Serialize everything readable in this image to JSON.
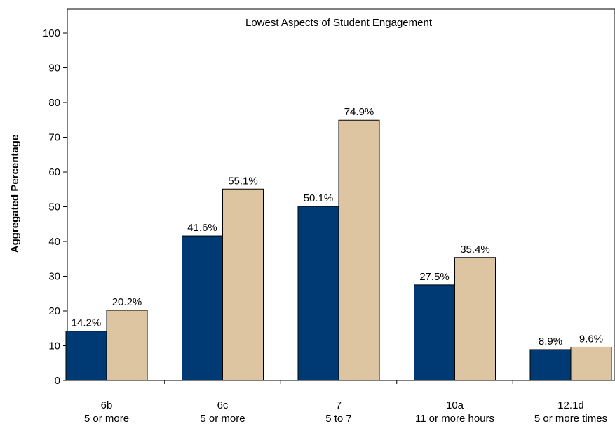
{
  "chart_data": {
    "type": "bar",
    "title": "Lowest Aspects of Student Engagement",
    "ylabel": "Aggregated Percentage",
    "xlabel": "",
    "ylim": [
      0,
      100
    ],
    "yticks": [
      0,
      10,
      20,
      30,
      40,
      50,
      60,
      70,
      80,
      90,
      100
    ],
    "categories": [
      {
        "line1": "6b",
        "line2": "5 or more"
      },
      {
        "line1": "6c",
        "line2": "5 or more"
      },
      {
        "line1": "7",
        "line2": "5 to 7"
      },
      {
        "line1": "10a",
        "line2": "11 or more hours"
      },
      {
        "line1": "12.1d",
        "line2": "5 or more times"
      }
    ],
    "series": [
      {
        "color": "#003a74",
        "values": [
          14.2,
          41.6,
          50.1,
          27.5,
          8.9
        ],
        "labels": [
          "14.2%",
          "41.6%",
          "50.1%",
          "27.5%",
          "8.9%"
        ]
      },
      {
        "color": "#dcc5a0",
        "values": [
          20.2,
          55.1,
          74.9,
          35.4,
          9.6
        ],
        "labels": [
          "20.2%",
          "55.1%",
          "74.9%",
          "35.4%",
          "9.6%"
        ]
      }
    ],
    "grid": false,
    "legend": "none"
  }
}
